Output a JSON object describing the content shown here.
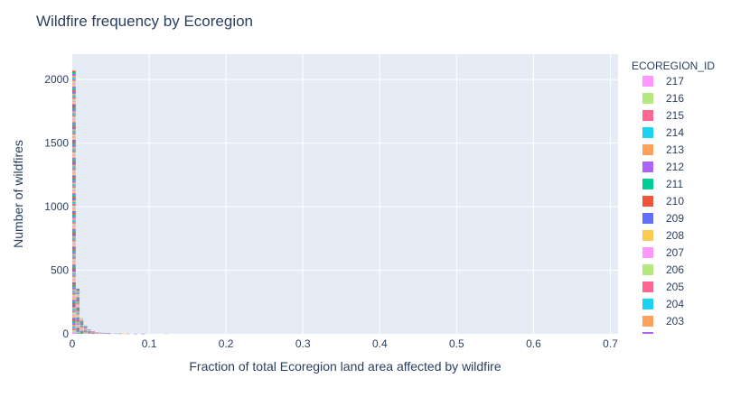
{
  "chart_data": {
    "type": "bar",
    "title": "Wildfire frequency by Ecoregion",
    "xlabel": "Fraction of total Ecoregion land area affected by wildfire",
    "ylabel": "Number of wildfires",
    "xlim": [
      0,
      0.71
    ],
    "ylim": [
      0,
      2200
    ],
    "x_ticks": [
      "0",
      "0.1",
      "0.2",
      "0.3",
      "0.4",
      "0.5",
      "0.6",
      "0.7"
    ],
    "y_ticks": [
      "0",
      "500",
      "1000",
      "1500",
      "2000"
    ],
    "grid": true,
    "barmode": "stack",
    "legend_title": "ECOREGION_ID",
    "legend_position": "right",
    "legend_entries": [
      {
        "name": "217",
        "color": "#FF97FF"
      },
      {
        "name": "216",
        "color": "#B6E880"
      },
      {
        "name": "215",
        "color": "#FF6692"
      },
      {
        "name": "214",
        "color": "#19D3F3"
      },
      {
        "name": "213",
        "color": "#FFA15A"
      },
      {
        "name": "212",
        "color": "#AB63FA"
      },
      {
        "name": "211",
        "color": "#00CC96"
      },
      {
        "name": "210",
        "color": "#EF553B"
      },
      {
        "name": "209",
        "color": "#636EFA"
      },
      {
        "name": "208",
        "color": "#FECB52"
      },
      {
        "name": "207",
        "color": "#FF97FF"
      },
      {
        "name": "206",
        "color": "#B6E880"
      },
      {
        "name": "205",
        "color": "#FF6692"
      },
      {
        "name": "204",
        "color": "#19D3F3"
      },
      {
        "name": "203",
        "color": "#FFA15A"
      }
    ],
    "bins": [
      {
        "x": 0.0,
        "width": 0.005,
        "count": 2070
      },
      {
        "x": 0.005,
        "width": 0.005,
        "count": 355
      },
      {
        "x": 0.01,
        "width": 0.005,
        "count": 125
      },
      {
        "x": 0.015,
        "width": 0.005,
        "count": 60
      },
      {
        "x": 0.02,
        "width": 0.005,
        "count": 35
      },
      {
        "x": 0.025,
        "width": 0.005,
        "count": 22
      },
      {
        "x": 0.03,
        "width": 0.005,
        "count": 14
      },
      {
        "x": 0.035,
        "width": 0.005,
        "count": 9
      },
      {
        "x": 0.04,
        "width": 0.005,
        "count": 6
      },
      {
        "x": 0.045,
        "width": 0.005,
        "count": 5
      },
      {
        "x": 0.05,
        "width": 0.005,
        "count": 3
      },
      {
        "x": 0.055,
        "width": 0.005,
        "count": 3
      },
      {
        "x": 0.06,
        "width": 0.005,
        "count": 2
      },
      {
        "x": 0.065,
        "width": 0.005,
        "count": 2
      },
      {
        "x": 0.07,
        "width": 0.005,
        "count": 1
      },
      {
        "x": 0.08,
        "width": 0.005,
        "count": 1
      },
      {
        "x": 0.09,
        "width": 0.005,
        "count": 1
      },
      {
        "x": 0.12,
        "width": 0.005,
        "count": 1
      }
    ]
  }
}
